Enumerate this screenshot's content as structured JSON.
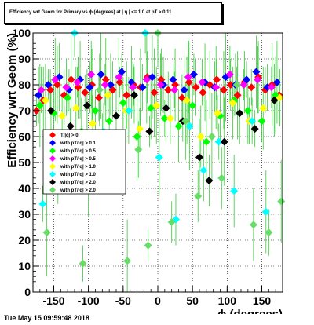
{
  "colors": {
    "frame": "#000000",
    "grid": "#000000",
    "error_bar": "#33cc33"
  },
  "chart_data": {
    "type": "scatter",
    "title": "Efficiency wrt Geom for Primary vs ϕ (degrees) at | η | <= 1.0 at pT > 0.11",
    "xlabel": "ϕ (degrees)",
    "ylabel": "Efficiency wrt Geom (%)",
    "xlim": [
      -180,
      180
    ],
    "ylim": [
      0,
      100
    ],
    "x_ticks": [
      -150,
      -100,
      -50,
      0,
      50,
      100,
      150
    ],
    "y_ticks": [
      0,
      10,
      20,
      30,
      40,
      50,
      60,
      70,
      80,
      90,
      100
    ],
    "grid": true,
    "legend_position": "center-left",
    "legend": [
      {
        "label": "T/|q| > 0.",
        "color": "#ff0000"
      },
      {
        "label": "with pT/|q| > 0.1",
        "color": "#0000ff"
      },
      {
        "label": "with pT/|q| > 0.5",
        "color": "#00ff00"
      },
      {
        "label": "with pT/|q| > 0.5",
        "color": "#ff00ff"
      },
      {
        "label": "with pT/|q| > 1.0",
        "color": "#ffff00"
      },
      {
        "label": "with pT/|q| > 1.0",
        "color": "#00ffff"
      },
      {
        "label": "with pT/|q| > 2.0",
        "color": "#000000"
      },
      {
        "label": "with pT/|q| > 2.0",
        "color": "#66dd66"
      }
    ],
    "series": [
      {
        "color": "#ff0000",
        "x": [
          -175,
          -165,
          -155,
          -145,
          -135,
          -125,
          -115,
          -105,
          -95,
          -85,
          -75,
          -65,
          -55,
          -45,
          -35,
          -25,
          -15,
          -5,
          5,
          15,
          25,
          35,
          45,
          55,
          65,
          75,
          85,
          95,
          105,
          115,
          125,
          135,
          145,
          155,
          165,
          175
        ],
        "y": [
          70,
          74,
          78,
          80,
          76,
          82,
          79,
          77,
          80,
          75,
          82,
          78,
          81,
          76,
          80,
          79,
          83,
          77,
          82,
          78,
          80,
          75,
          81,
          79,
          77,
          80,
          82,
          78,
          80,
          76,
          81,
          79,
          83,
          78,
          80,
          76
        ]
      },
      {
        "color": "#0000ff",
        "x": [
          -172,
          -158,
          -142,
          -128,
          -112,
          -98,
          -82,
          -68,
          -52,
          -38,
          -22,
          -8,
          8,
          22,
          38,
          52,
          68,
          82,
          98,
          112,
          128,
          142,
          158,
          172
        ],
        "y": [
          76,
          80,
          83,
          78,
          82,
          79,
          84,
          80,
          85,
          81,
          79,
          83,
          80,
          82,
          78,
          84,
          81,
          79,
          83,
          80,
          82,
          85,
          79,
          81
        ]
      },
      {
        "color": "#00ff00",
        "x": [
          -170,
          -150,
          -130,
          -110,
          -90,
          -70,
          -50,
          -30,
          -10,
          10,
          30,
          50,
          70,
          90,
          110,
          130,
          150,
          170
        ],
        "y": [
          72,
          69,
          75,
          62,
          70,
          66,
          73,
          60,
          71,
          67,
          64,
          72,
          58,
          68,
          74,
          70,
          66,
          76
        ]
      },
      {
        "color": "#ff00ff",
        "x": [
          -168,
          -148,
          -132,
          -116,
          -96,
          -76,
          -56,
          -36,
          -16,
          4,
          24,
          44,
          64,
          84,
          104,
          124,
          144,
          164
        ],
        "y": [
          78,
          82,
          79,
          81,
          84,
          80,
          83,
          79,
          82,
          80,
          78,
          83,
          81,
          79,
          84,
          80,
          82,
          79
        ]
      },
      {
        "color": "#ffff00",
        "x": [
          -162,
          -138,
          -118,
          -94,
          -72,
          -46,
          -26,
          -2,
          18,
          42,
          62,
          86,
          108,
          132,
          152,
          176
        ],
        "y": [
          74,
          68,
          71,
          65,
          76,
          70,
          63,
          72,
          67,
          74,
          60,
          69,
          73,
          66,
          71,
          75
        ]
      },
      {
        "color": "#00ffff",
        "x": [
          -166,
          -144,
          -120,
          -100,
          -78,
          -58,
          -42,
          -18,
          2,
          26,
          46,
          66,
          88,
          110,
          136,
          156
        ],
        "y": [
          34,
          48,
          100,
          45,
          62,
          55,
          70,
          100,
          52,
          28,
          64,
          47,
          58,
          39,
          66,
          31
        ]
      },
      {
        "color": "#000000",
        "x": [
          -154,
          -126,
          -102,
          -80,
          -60,
          -34,
          -12,
          12,
          36,
          60,
          74,
          96,
          118,
          140,
          168
        ],
        "y": [
          70,
          64,
          72,
          60,
          68,
          76,
          62,
          71,
          66,
          52,
          43,
          58,
          69,
          63,
          74
        ]
      },
      {
        "color": "#66dd66",
        "x": [
          -160,
          -135,
          -108,
          -84,
          -62,
          -44,
          -28,
          -14,
          0,
          20,
          40,
          58,
          78,
          92,
          114,
          138,
          160,
          178
        ],
        "y": [
          23,
          60,
          11,
          78,
          50,
          12,
          55,
          18,
          100,
          27,
          66,
          37,
          60,
          44,
          80,
          26,
          23,
          35
        ]
      }
    ]
  },
  "footer": {
    "timestamp": "Tue May 15 09:59:48 2018"
  }
}
